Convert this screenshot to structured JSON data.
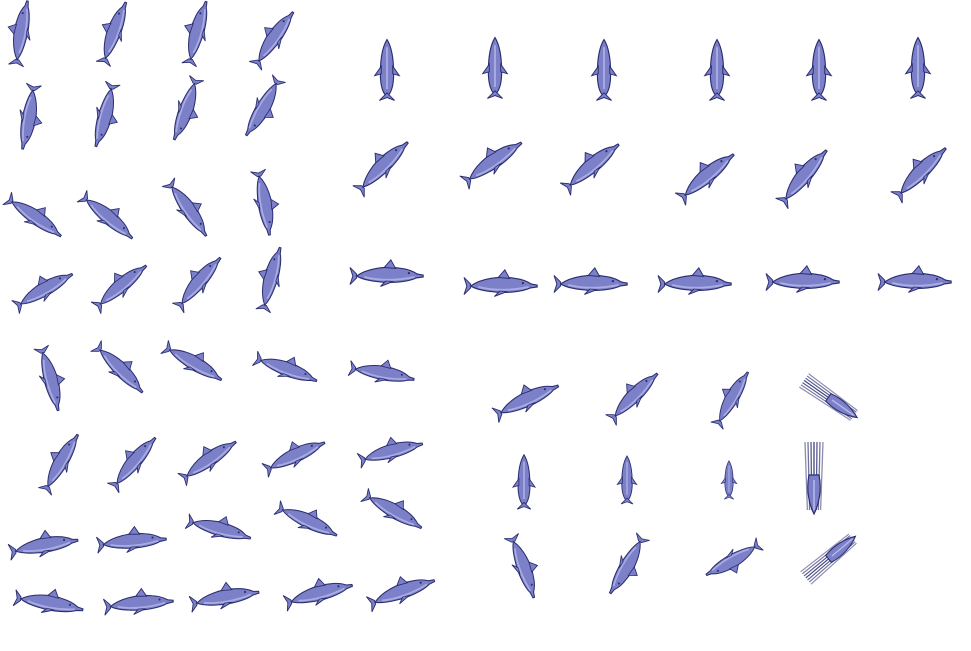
{
  "sheet": {
    "background": "#ffffff",
    "sprite_colors": {
      "fill": "#7c80c8",
      "light": "#b4b8e8",
      "outline": "#2a2d6e"
    },
    "icon": "dolphin-icon"
  },
  "groups": [
    {
      "name": "left-top-swim-cycle",
      "rows": 4,
      "cols": 4
    },
    {
      "name": "right-top-orientation-set",
      "rows": 3,
      "cols": 6
    },
    {
      "name": "left-bottom-dive-set",
      "rows": 4,
      "cols": 5
    },
    {
      "name": "right-bottom-jump-set",
      "rows": 3,
      "cols": 4
    }
  ]
}
